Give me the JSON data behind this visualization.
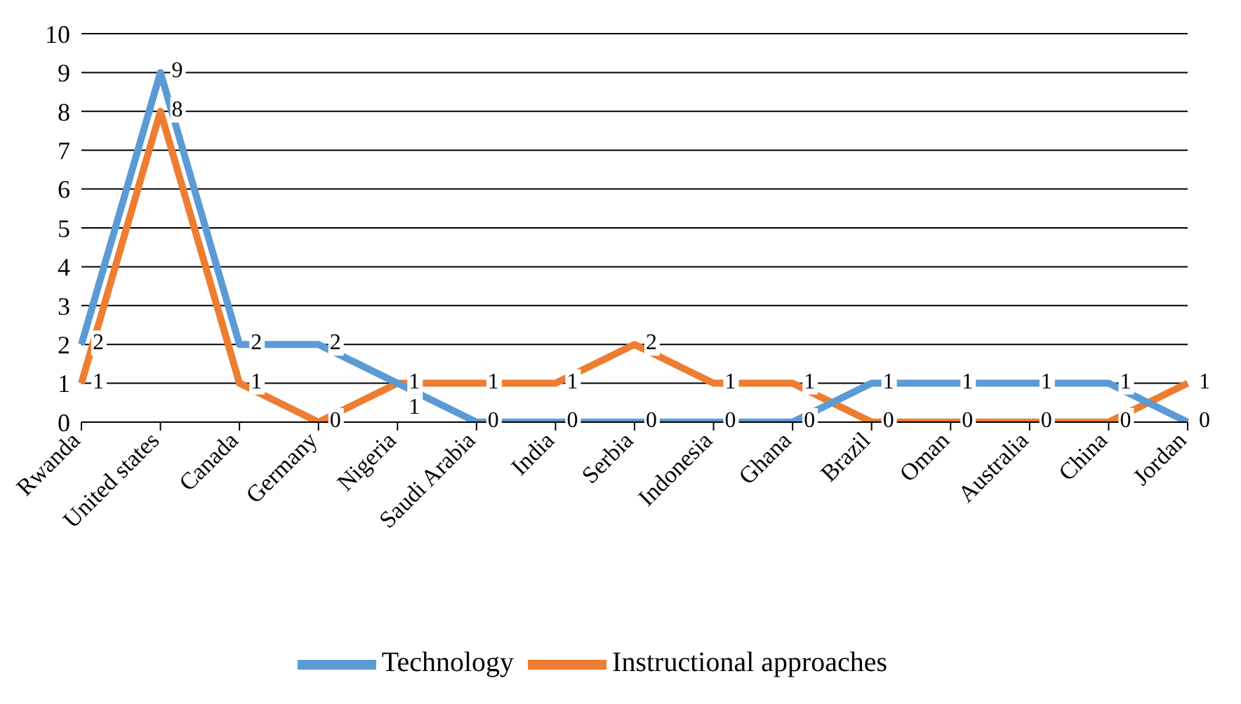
{
  "chart_data": {
    "type": "line",
    "categories": [
      "Rwanda",
      "United states",
      "Canada",
      "Germany",
      "Nigeria",
      "Saudi Arabia",
      "India",
      "Serbia",
      "Indonesia",
      "Ghana",
      "Brazil",
      "Oman",
      "Australia",
      "China",
      "Jordan"
    ],
    "series": [
      {
        "name": "Technology",
        "color": "#5b9bd5",
        "values": [
          2,
          9,
          2,
          2,
          1,
          0,
          0,
          0,
          0,
          0,
          1,
          1,
          1,
          1,
          0
        ]
      },
      {
        "name": "Instructional approaches",
        "color": "#ed7d31",
        "values": [
          1,
          8,
          1,
          0,
          1,
          1,
          1,
          2,
          1,
          1,
          0,
          0,
          0,
          0,
          1
        ]
      }
    ],
    "ylim": [
      0,
      10
    ],
    "yticks": [
      0,
      1,
      2,
      3,
      4,
      5,
      6,
      7,
      8,
      9,
      10
    ],
    "grid": "y",
    "legend": "bottom",
    "marker": "none",
    "data_labels": true
  }
}
